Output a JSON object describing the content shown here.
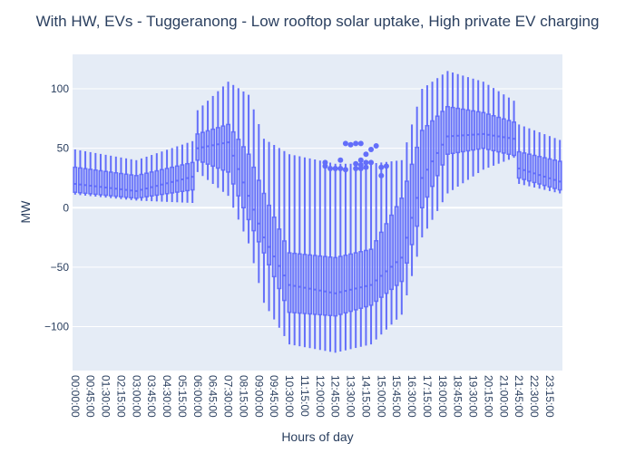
{
  "chart_data": {
    "type": "box",
    "title": "With HW, EVs - Tuggeranong - Low rooftop solar uptake, High private EV charging",
    "xlabel": "Hours of day",
    "ylabel": "MW",
    "ylim": [
      -137,
      129
    ],
    "yticks": [
      -100,
      -50,
      0,
      50,
      100
    ],
    "xtick_labels": [
      "00:00:00",
      "00:45:00",
      "01:30:00",
      "02:15:00",
      "03:00:00",
      "03:45:00",
      "04:30:00",
      "05:15:00",
      "06:00:00",
      "06:45:00",
      "07:30:00",
      "08:15:00",
      "09:00:00",
      "09:45:00",
      "10:30:00",
      "11:15:00",
      "12:00:00",
      "12:45:00",
      "13:30:00",
      "14:15:00",
      "15:00:00",
      "15:45:00",
      "16:30:00",
      "17:15:00",
      "18:00:00",
      "18:45:00",
      "19:30:00",
      "20:15:00",
      "21:00:00",
      "21:45:00",
      "22:30:00",
      "23:15:00"
    ],
    "interval_minutes": 15,
    "n_intervals": 96,
    "colors": {
      "box": "#636efa",
      "plot_bg": "#e5ecf6",
      "grid": "#ffffff"
    },
    "key_points": [
      {
        "x": "00:00:00",
        "min": 11,
        "q1": 13,
        "median": 20,
        "q3": 34,
        "max": 49
      },
      {
        "x": "03:00:00",
        "min": 6,
        "q1": 8,
        "median": 14,
        "q3": 27,
        "max": 40
      },
      {
        "x": "05:45:00",
        "min": 4,
        "q1": 15,
        "median": 26,
        "q3": 38,
        "max": 56
      },
      {
        "x": "06:00:00",
        "min": 30,
        "q1": 40,
        "median": 50,
        "q3": 62,
        "max": 82
      },
      {
        "x": "07:30:00",
        "min": 10,
        "q1": 30,
        "median": 55,
        "q3": 70,
        "max": 106
      },
      {
        "x": "08:30:00",
        "min": -30,
        "q1": -10,
        "median": 10,
        "q3": 45,
        "max": 95
      },
      {
        "x": "09:15:00",
        "min": -80,
        "q1": -38,
        "median": -25,
        "q3": 12,
        "max": 58
      },
      {
        "x": "10:30:00",
        "min": -115,
        "q1": -88,
        "median": -65,
        "q3": -38,
        "max": 45
      },
      {
        "x": "12:45:00",
        "min": -122,
        "q1": -91,
        "median": -72,
        "q3": -42,
        "max": 37
      },
      {
        "x": "14:30:00",
        "min": -115,
        "q1": -82,
        "median": -65,
        "q3": -35,
        "max": 37
      },
      {
        "x": "16:00:00",
        "min": -90,
        "q1": -62,
        "median": -42,
        "q3": 8,
        "max": 40
      },
      {
        "x": "17:00:00",
        "min": -25,
        "q1": 0,
        "median": 25,
        "q3": 65,
        "max": 100
      },
      {
        "x": "18:15:00",
        "min": 12,
        "q1": 45,
        "median": 60,
        "q3": 85,
        "max": 115
      },
      {
        "x": "20:00:00",
        "min": 32,
        "q1": 50,
        "median": 62,
        "q3": 80,
        "max": 106
      },
      {
        "x": "21:30:00",
        "min": 42,
        "q1": 44,
        "median": 58,
        "q3": 72,
        "max": 90
      },
      {
        "x": "21:45:00",
        "min": 20,
        "q1": 25,
        "median": 33,
        "q3": 47,
        "max": 70
      },
      {
        "x": "23:45:00",
        "min": 12,
        "q1": 15,
        "median": 22,
        "q3": 39,
        "max": 57
      }
    ],
    "outliers": [
      {
        "x": "12:15:00",
        "y": 38
      },
      {
        "x": "12:15:00",
        "y": 35
      },
      {
        "x": "12:30:00",
        "y": 33
      },
      {
        "x": "12:45:00",
        "y": 33
      },
      {
        "x": "13:00:00",
        "y": 40
      },
      {
        "x": "13:00:00",
        "y": 33
      },
      {
        "x": "13:15:00",
        "y": 54
      },
      {
        "x": "13:15:00",
        "y": 32
      },
      {
        "x": "13:30:00",
        "y": 53
      },
      {
        "x": "13:45:00",
        "y": 54
      },
      {
        "x": "13:45:00",
        "y": 37
      },
      {
        "x": "13:45:00",
        "y": 33
      },
      {
        "x": "14:00:00",
        "y": 54
      },
      {
        "x": "14:00:00",
        "y": 40
      },
      {
        "x": "14:00:00",
        "y": 36
      },
      {
        "x": "14:00:00",
        "y": 33
      },
      {
        "x": "14:15:00",
        "y": 45
      },
      {
        "x": "14:15:00",
        "y": 38
      },
      {
        "x": "14:15:00",
        "y": 34
      },
      {
        "x": "14:30:00",
        "y": 49
      },
      {
        "x": "14:30:00",
        "y": 38
      },
      {
        "x": "14:45:00",
        "y": 52
      },
      {
        "x": "15:00:00",
        "y": 34
      },
      {
        "x": "15:00:00",
        "y": 27
      },
      {
        "x": "15:15:00",
        "y": 35
      }
    ]
  }
}
